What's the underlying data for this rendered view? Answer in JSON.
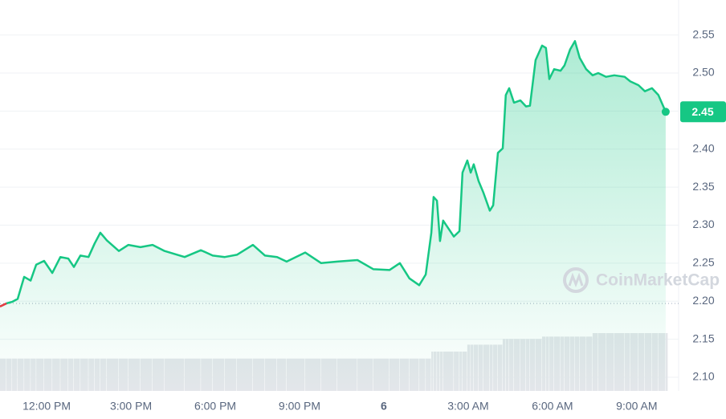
{
  "chart_data": {
    "type": "line",
    "x": [
      10.34,
      10.57,
      10.77,
      10.97,
      11.2,
      11.43,
      11.63,
      11.91,
      12.2,
      12.49,
      12.77,
      12.97,
      13.2,
      13.49,
      13.71,
      13.91,
      14.14,
      14.57,
      14.91,
      15.34,
      15.77,
      16.2,
      16.91,
      17.49,
      17.91,
      18.34,
      18.77,
      19.34,
      19.77,
      20.2,
      20.54,
      21.2,
      21.77,
      22.34,
      23.06,
      23.63,
      24.2,
      24.57,
      24.91,
      25.26,
      25.49,
      25.69,
      25.77,
      25.89,
      26,
      26.11,
      26.49,
      26.69,
      26.8,
      26.97,
      27.09,
      27.2,
      27.37,
      27.54,
      27.77,
      27.89,
      28.06,
      28.23,
      28.34,
      28.46,
      28.63,
      28.86,
      29.06,
      29.2,
      29.4,
      29.63,
      29.77,
      29.89,
      30.06,
      30.29,
      30.43,
      30.63,
      30.8,
      30.97,
      31.2,
      31.43,
      31.63,
      31.91,
      32.2,
      32.57,
      32.77,
      33.06,
      33.29,
      33.54,
      33.77,
      34.03
    ],
    "series": [
      {
        "name": "Price",
        "color": "#16c784",
        "down_color": "#ea3943",
        "values": [
          2.193,
          2.197,
          2.199,
          2.203,
          2.232,
          2.227,
          2.248,
          2.253,
          2.237,
          2.258,
          2.256,
          2.245,
          2.26,
          2.258,
          2.276,
          2.29,
          2.28,
          2.266,
          2.274,
          2.271,
          2.274,
          2.266,
          2.258,
          2.267,
          2.26,
          2.258,
          2.261,
          2.274,
          2.26,
          2.258,
          2.252,
          2.264,
          2.25,
          2.252,
          2.254,
          2.242,
          2.241,
          2.25,
          2.23,
          2.221,
          2.235,
          2.29,
          2.337,
          2.332,
          2.279,
          2.306,
          2.285,
          2.292,
          2.369,
          2.385,
          2.369,
          2.38,
          2.358,
          2.343,
          2.319,
          2.326,
          2.395,
          2.401,
          2.471,
          2.48,
          2.461,
          2.464,
          2.456,
          2.457,
          2.517,
          2.536,
          2.533,
          2.492,
          2.505,
          2.503,
          2.51,
          2.531,
          2.542,
          2.52,
          2.505,
          2.497,
          2.5,
          2.495,
          2.497,
          2.495,
          2.489,
          2.484,
          2.476,
          2.48,
          2.471,
          2.449
        ]
      },
      {
        "name": "Volume",
        "color": "#e3e6ea",
        "values": [
          28,
          28,
          28,
          28,
          28,
          28,
          28,
          28,
          28,
          28,
          28,
          28,
          28,
          28,
          28,
          28,
          28,
          28,
          28,
          28,
          28,
          28,
          28,
          28,
          28,
          28,
          28,
          28,
          28,
          28,
          28,
          28,
          28,
          28,
          28,
          28,
          28,
          28,
          28,
          28,
          28,
          34,
          34,
          34,
          34,
          34,
          34,
          34,
          34,
          40,
          40,
          40,
          40,
          40,
          40,
          40,
          40,
          45,
          45,
          45,
          45,
          45,
          45,
          45,
          45,
          47,
          47,
          47,
          47,
          47,
          47,
          47,
          47,
          47,
          47,
          50,
          50,
          50,
          50,
          50,
          50,
          50,
          50,
          50,
          50,
          50
        ]
      }
    ],
    "reference_line": 2.197,
    "last_price_label": "2.45",
    "watermark": "CoinMarketCap",
    "xlim": [
      10.34,
      34.49
    ],
    "xticks": [
      {
        "value": 12,
        "label": "12:00 PM"
      },
      {
        "value": 15,
        "label": "3:00 PM"
      },
      {
        "value": 18,
        "label": "6:00 PM"
      },
      {
        "value": 21,
        "label": "9:00 PM"
      },
      {
        "value": 24,
        "label": "6"
      },
      {
        "value": 27,
        "label": "3:00 AM"
      },
      {
        "value": 30,
        "label": "6:00 AM"
      },
      {
        "value": 33,
        "label": "9:00 AM"
      }
    ],
    "ylim": [
      2.082,
      2.596
    ],
    "yticks": [
      {
        "value": 2.1,
        "label": "2.10"
      },
      {
        "value": 2.15,
        "label": "2.15"
      },
      {
        "value": 2.2,
        "label": "2.20"
      },
      {
        "value": 2.25,
        "label": "2.25"
      },
      {
        "value": 2.3,
        "label": "2.30"
      },
      {
        "value": 2.35,
        "label": "2.35"
      },
      {
        "value": 2.4,
        "label": "2.40"
      },
      {
        "value": 2.45,
        "label": "2.45"
      },
      {
        "value": 2.5,
        "label": "2.50"
      },
      {
        "value": 2.55,
        "label": "2.55"
      }
    ],
    "grid": true
  }
}
